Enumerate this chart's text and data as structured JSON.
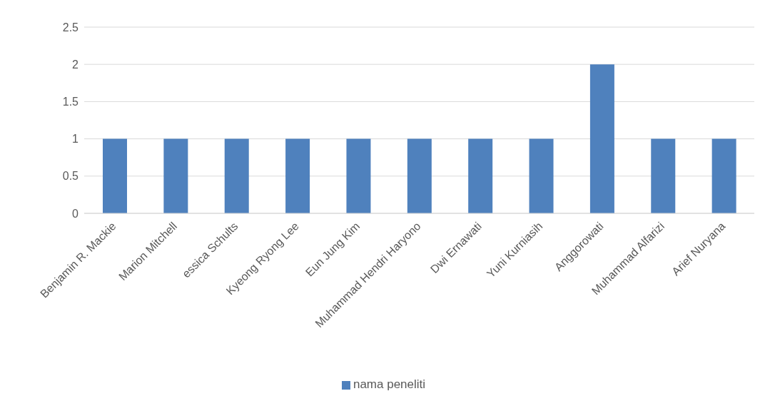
{
  "chart_data": {
    "type": "bar",
    "categories": [
      "Benjamin R. Mackie",
      "Marion Mitchell",
      "essica Schults",
      "Kyeong Ryong Lee",
      "Eun Jung Kim",
      "Muhammad Hendri Haryono",
      "Dwi Ernawati",
      "Yuni Kurniasih",
      "Anggorowati",
      "Muhammad Alfarizi",
      "Arief Nuryana"
    ],
    "series": [
      {
        "name": "nama peneliti",
        "color": "#4f81bd",
        "values": [
          1,
          1,
          1,
          1,
          1,
          1,
          1,
          1,
          2,
          1,
          1
        ]
      }
    ],
    "ylim": [
      0,
      2.5
    ],
    "yticks": [
      0,
      0.5,
      1,
      1.5,
      2,
      2.5
    ],
    "grid": "y",
    "legend": "bottom"
  }
}
